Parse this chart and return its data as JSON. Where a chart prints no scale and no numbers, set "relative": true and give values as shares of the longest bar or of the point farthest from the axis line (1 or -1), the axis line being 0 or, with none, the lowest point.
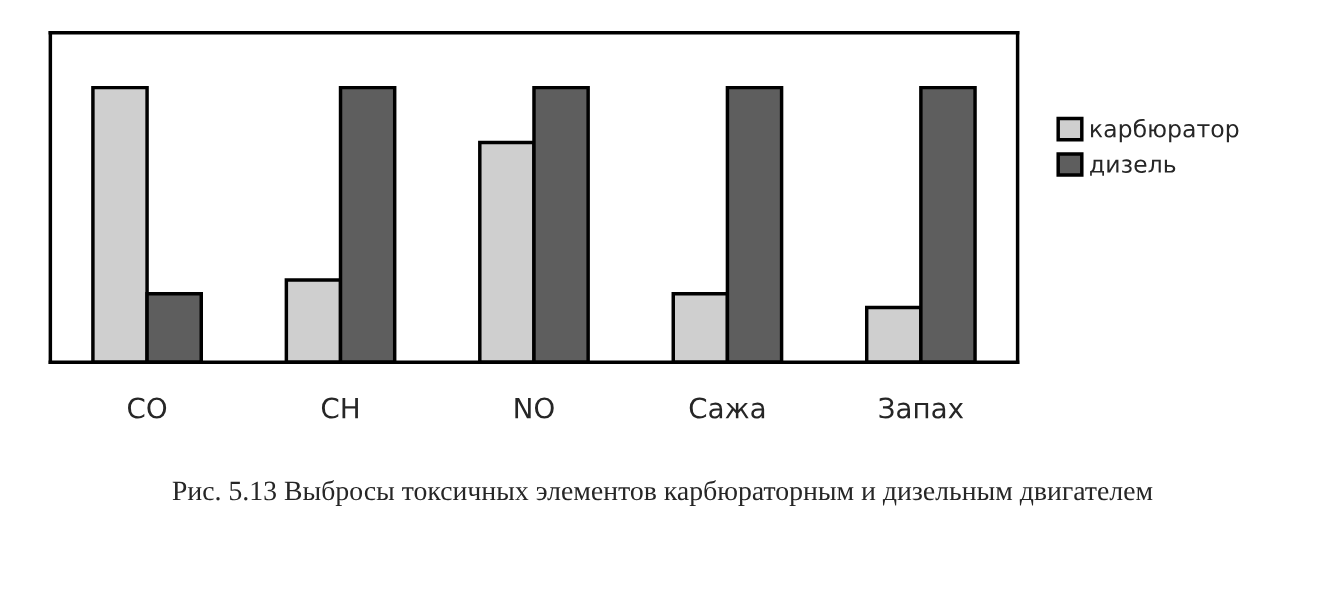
{
  "chart_data": {
    "type": "bar",
    "relative": true,
    "categories": [
      "CO",
      "CH",
      "NO",
      "Сажа",
      "Запах"
    ],
    "series": [
      {
        "name": "карбюратор",
        "color": "#cfcfcf",
        "values": [
          1,
          0.3,
          0.8,
          0.25,
          0.2
        ]
      },
      {
        "name": "дизель",
        "color": "#5e5e5e",
        "values": [
          0.25,
          1,
          1,
          1,
          1
        ]
      }
    ],
    "legend": "right",
    "grid": false,
    "annotations": [
      "Рис. 5.13 Выбросы токсичных элементов карбюраторным и дизельным двигателем"
    ]
  }
}
